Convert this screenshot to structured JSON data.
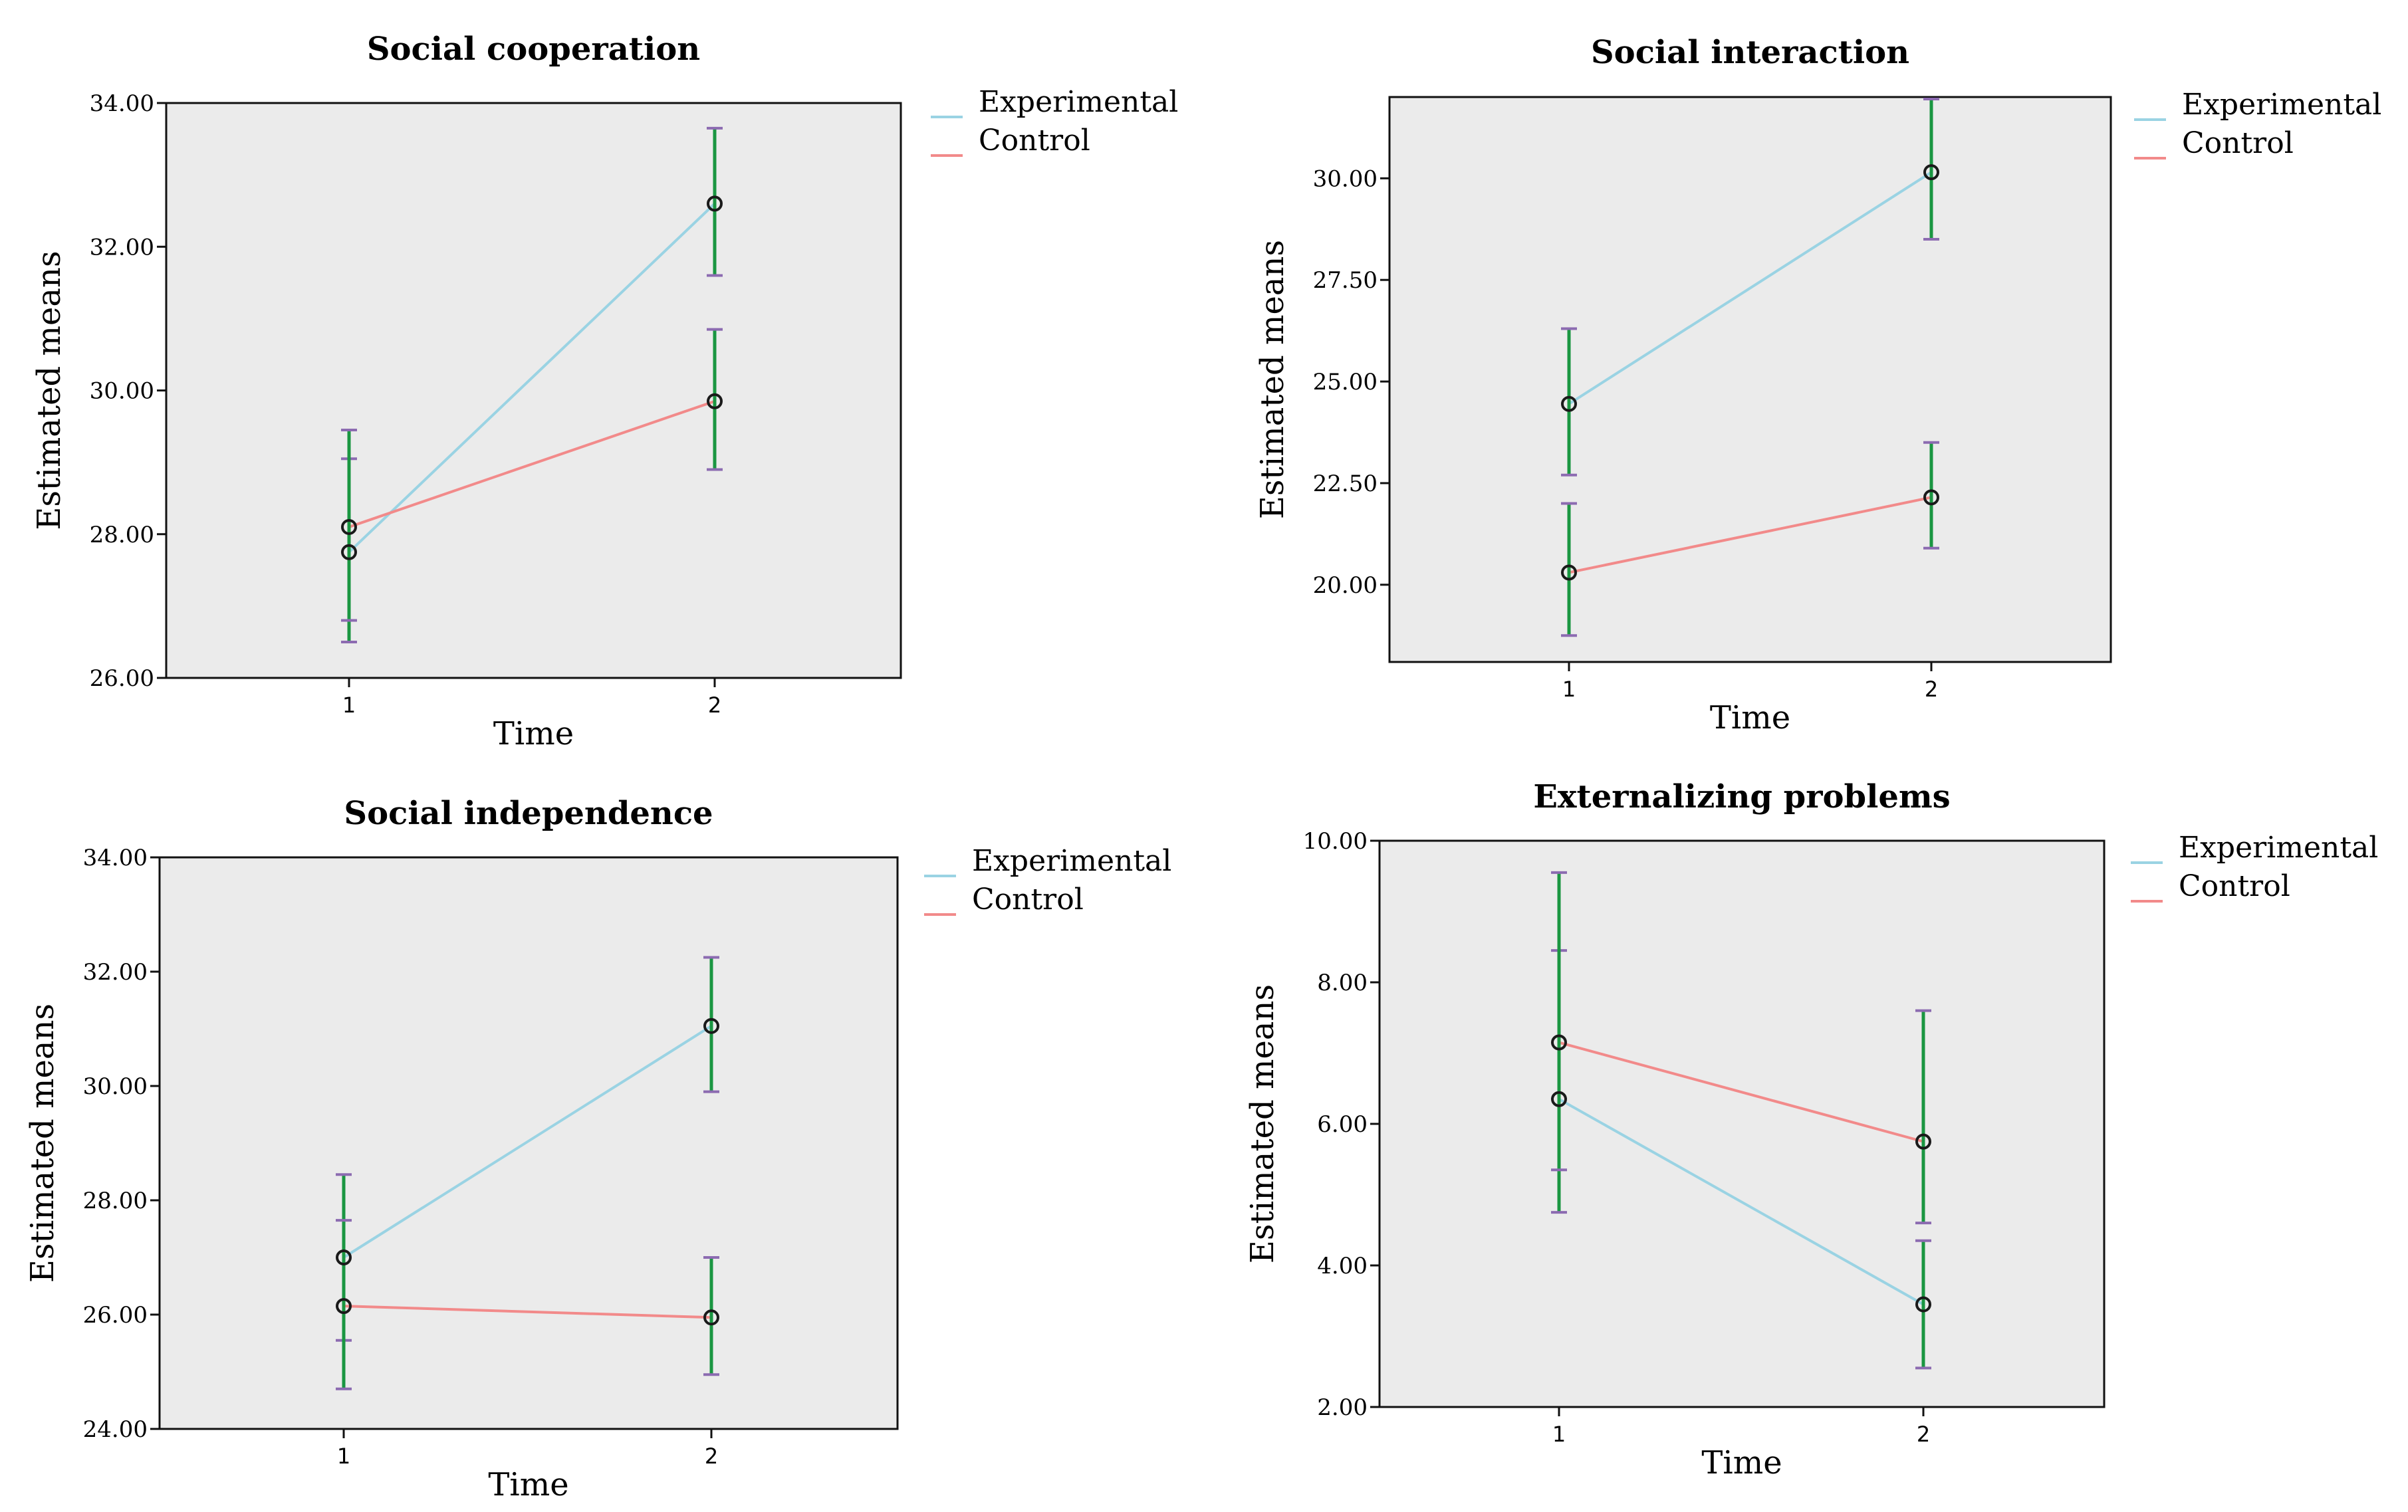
{
  "colors": {
    "experimental": "#9ad3e3",
    "control": "#f28a8a",
    "errorbar": "#1a9641",
    "cap": "#8c6bb1",
    "plot_bg": "#ebebeb",
    "marker": "#1a1a1a"
  },
  "chart_data": [
    {
      "type": "line",
      "title": "Social cooperation",
      "xlabel": "Time",
      "ylabel": "Estimated means",
      "categories": [
        "1",
        "2"
      ],
      "yticks": [
        "26.00",
        "28.00",
        "30.00",
        "32.00",
        "34.00"
      ],
      "ylim": [
        26,
        34
      ],
      "legend_position": "right",
      "series": [
        {
          "name": "Experimental",
          "values": [
            27.75,
            32.6
          ],
          "ci_low": [
            26.5,
            31.6
          ],
          "ci_high": [
            29.05,
            33.65
          ]
        },
        {
          "name": "Control",
          "values": [
            28.1,
            29.85
          ],
          "ci_low": [
            26.8,
            28.9
          ],
          "ci_high": [
            29.45,
            30.85
          ]
        }
      ]
    },
    {
      "type": "line",
      "title": "Social interaction",
      "xlabel": "Time",
      "ylabel": "Estimated means",
      "categories": [
        "1",
        "2"
      ],
      "yticks": [
        "20.00",
        "22.50",
        "25.00",
        "27.50",
        "30.00"
      ],
      "ylim": [
        18.1,
        32.0
      ],
      "legend_position": "right",
      "series": [
        {
          "name": "Experimental",
          "values": [
            24.45,
            30.15
          ],
          "ci_low": [
            22.7,
            28.5
          ],
          "ci_high": [
            26.3,
            31.95
          ]
        },
        {
          "name": "Control",
          "values": [
            20.3,
            22.15
          ],
          "ci_low": [
            18.75,
            20.9
          ],
          "ci_high": [
            22.0,
            23.5
          ]
        }
      ]
    },
    {
      "type": "line",
      "title": "Social independence",
      "xlabel": "Time",
      "ylabel": "Estimated means",
      "categories": [
        "1",
        "2"
      ],
      "yticks": [
        "24.00",
        "26.00",
        "28.00",
        "30.00",
        "32.00",
        "34.00"
      ],
      "ylim": [
        24,
        34
      ],
      "legend_position": "right",
      "series": [
        {
          "name": "Experimental",
          "values": [
            27.0,
            31.05
          ],
          "ci_low": [
            25.55,
            29.9
          ],
          "ci_high": [
            28.45,
            32.25
          ]
        },
        {
          "name": "Control",
          "values": [
            26.15,
            25.95
          ],
          "ci_low": [
            24.7,
            24.95
          ],
          "ci_high": [
            27.65,
            27.0
          ]
        }
      ]
    },
    {
      "type": "line",
      "title": "Externalizing problems",
      "xlabel": "Time",
      "ylabel": "Estimated means",
      "categories": [
        "1",
        "2"
      ],
      "yticks": [
        "2.00",
        "4.00",
        "6.00",
        "8.00",
        "10.00"
      ],
      "ylim": [
        2,
        10
      ],
      "legend_position": "right",
      "series": [
        {
          "name": "Experimental",
          "values": [
            6.35,
            3.45
          ],
          "ci_low": [
            4.75,
            2.55
          ],
          "ci_high": [
            8.45,
            4.35
          ]
        },
        {
          "name": "Control",
          "values": [
            7.15,
            5.75
          ],
          "ci_low": [
            5.35,
            4.6
          ],
          "ci_high": [
            9.55,
            7.6
          ]
        }
      ]
    }
  ]
}
